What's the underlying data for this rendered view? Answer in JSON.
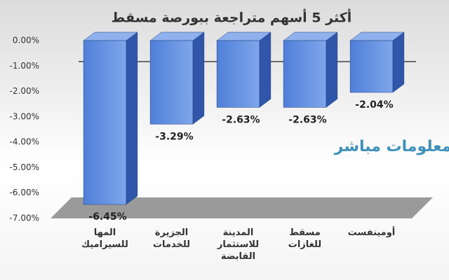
{
  "chart_data": {
    "type": "bar",
    "title": "أكثر 5 أسهم متراجعة ببورصة مسقط",
    "watermark": "معلومات مباشر",
    "categories": [
      "المها للسيراميك",
      "الجزيرة للخدمات",
      "المدينة للاستثمار القابضة",
      "مسقط للغازات",
      "أومينفست"
    ],
    "values": [
      -6.45,
      -3.29,
      -2.63,
      -2.63,
      -2.04
    ],
    "value_labels": [
      "-6.45%",
      "-3.29%",
      "-2.63%",
      "-2.63%",
      "-2.04%"
    ],
    "color": "#4472c4",
    "ylim": [
      -7,
      0
    ],
    "yticks": [
      {
        "value": 0,
        "label": "0.00%"
      },
      {
        "value": -1,
        "label": "-1.00%"
      },
      {
        "value": -2,
        "label": "-2.00%"
      },
      {
        "value": -3,
        "label": "-3.00%"
      },
      {
        "value": -4,
        "label": "-4.00%"
      },
      {
        "value": -5,
        "label": "-5.00%"
      },
      {
        "value": -6,
        "label": "-6.00%"
      },
      {
        "value": -7,
        "label": "-7.00%"
      }
    ],
    "grid": false
  }
}
